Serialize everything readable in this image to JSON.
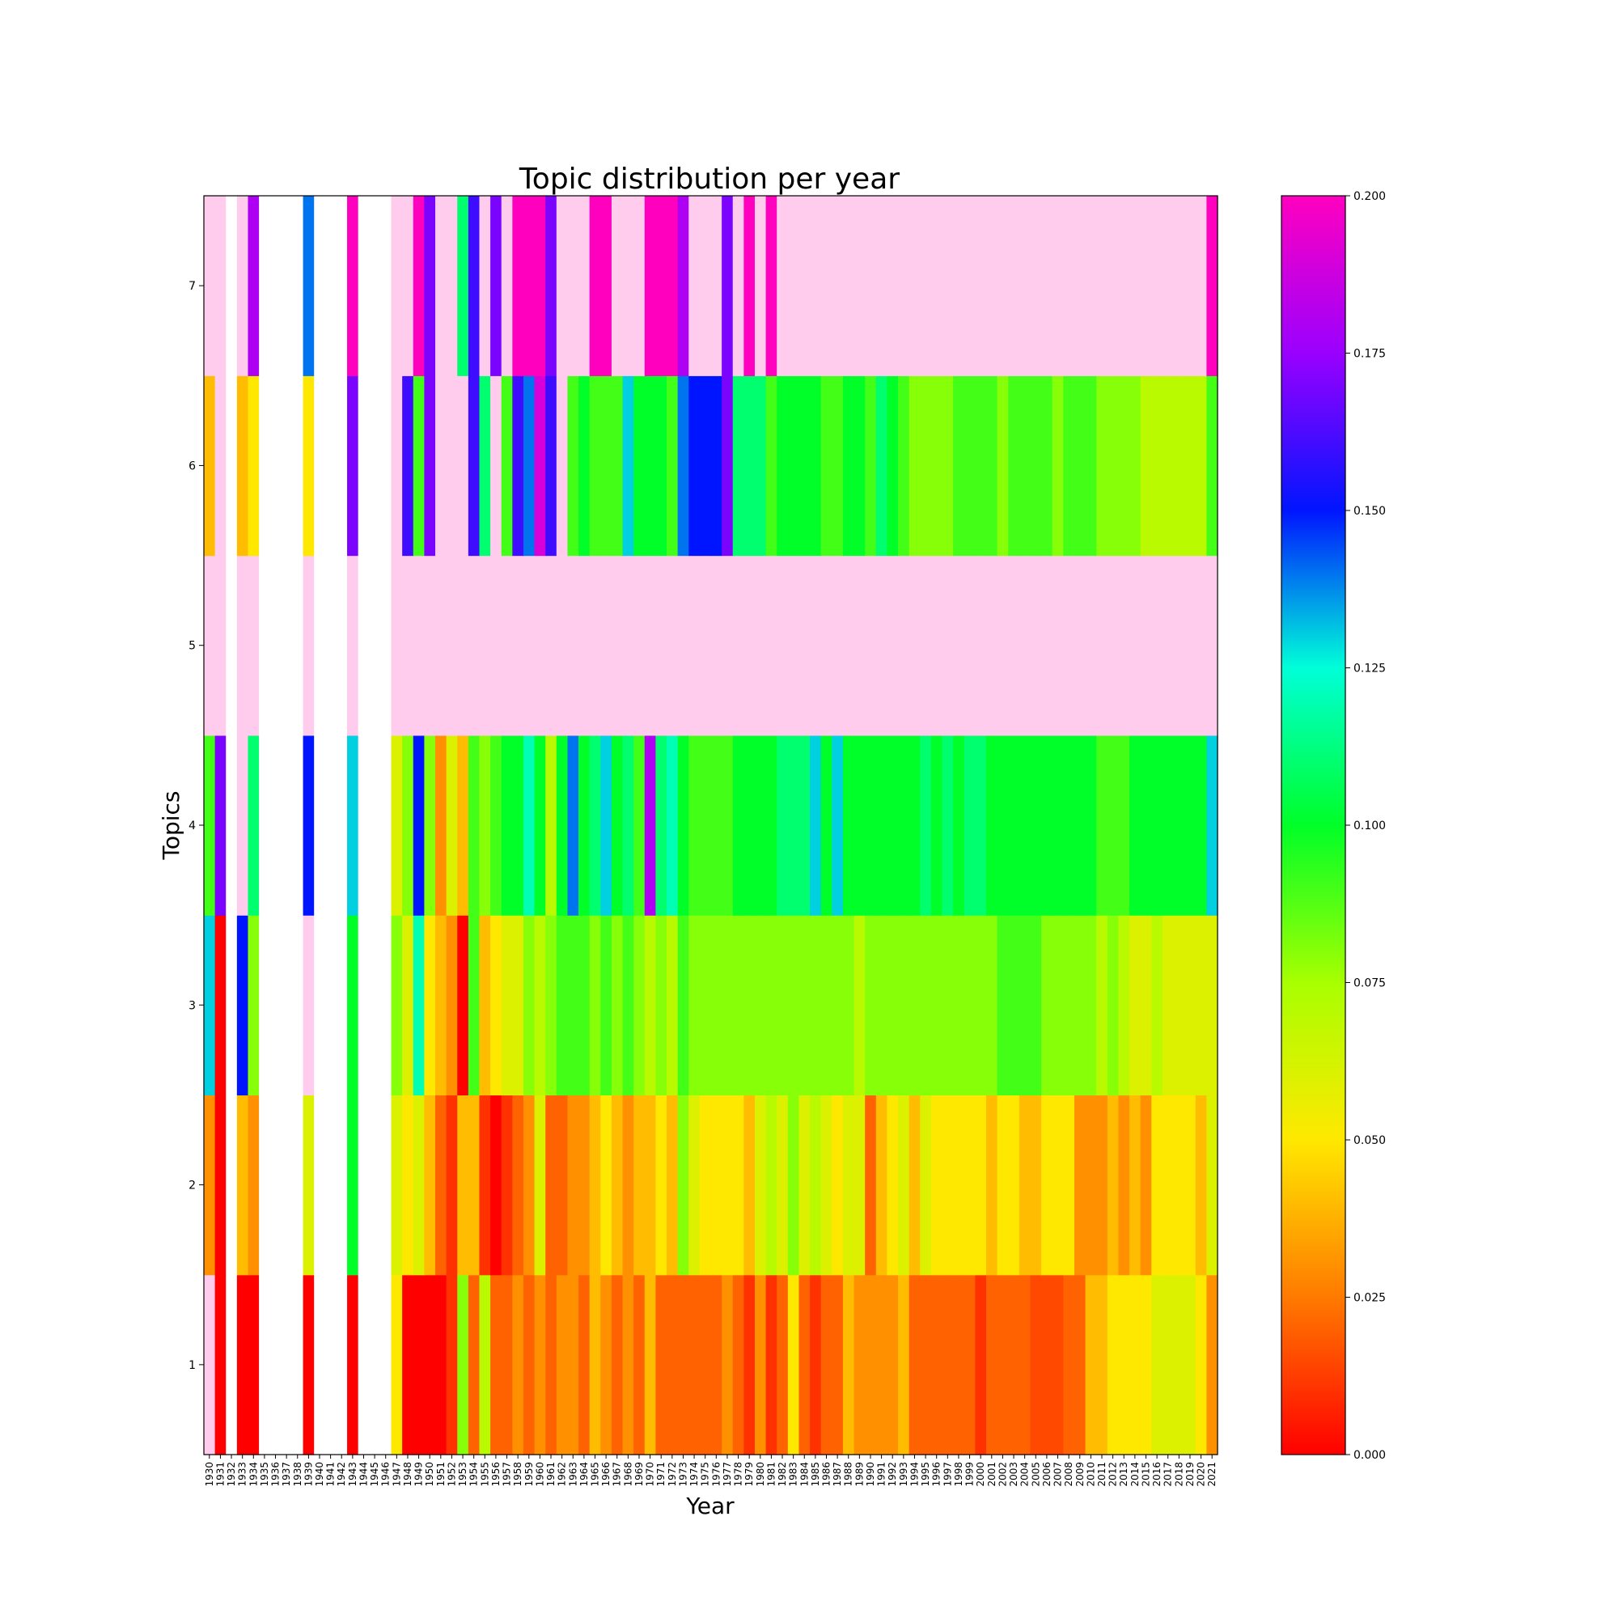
{
  "chart_data": {
    "type": "heatmap",
    "title": "Topic distribution per year",
    "xlabel": "Year",
    "ylabel": "Topics",
    "x": [
      "1930",
      "1931",
      "1932",
      "1933",
      "1934",
      "1935",
      "1936",
      "1937",
      "1938",
      "1939",
      "1940",
      "1941",
      "1942",
      "1943",
      "1944",
      "1945",
      "1946",
      "1947",
      "1948",
      "1949",
      "1950",
      "1951",
      "1952",
      "1953",
      "1954",
      "1955",
      "1956",
      "1957",
      "1958",
      "1959",
      "1960",
      "1961",
      "1962",
      "1963",
      "1964",
      "1965",
      "1966",
      "1967",
      "1968",
      "1969",
      "1970",
      "1971",
      "1972",
      "1973",
      "1974",
      "1975",
      "1976",
      "1977",
      "1978",
      "1979",
      "1980",
      "1981",
      "1982",
      "1983",
      "1984",
      "1985",
      "1986",
      "1987",
      "1988",
      "1989",
      "1990",
      "1991",
      "1992",
      "1993",
      "1994",
      "1995",
      "1996",
      "1997",
      "1998",
      "1999",
      "2000",
      "2001",
      "2002",
      "2003",
      "2004",
      "2005",
      "2006",
      "2007",
      "2008",
      "2009",
      "2010",
      "2011",
      "2012",
      "2013",
      "2014",
      "2015",
      "2016",
      "2017",
      "2018",
      "2019",
      "2020",
      "2021"
    ],
    "y": [
      "1",
      "2",
      "3",
      "4",
      "5",
      "6",
      "7"
    ],
    "colorbar": {
      "min": 0.0,
      "max": 0.2,
      "ticks": [
        "0.000",
        "0.025",
        "0.050",
        "0.075",
        "0.100",
        "0.125",
        "0.150",
        "0.175",
        "0.200"
      ],
      "colormap": "gist_rainbow",
      "over_color": "#ffccee",
      "missing_color": "#ffffff"
    },
    "values": [
      [
        0.21,
        0.0,
        null,
        0.0,
        0.0,
        null,
        null,
        null,
        null,
        0.0,
        null,
        null,
        null,
        0.0,
        null,
        null,
        null,
        0.05,
        0.0,
        0.0,
        0.0,
        0.0,
        0.01,
        0.08,
        0.02,
        0.07,
        0.02,
        0.02,
        0.03,
        0.02,
        0.03,
        0.02,
        0.03,
        0.03,
        0.02,
        0.04,
        0.03,
        0.02,
        0.03,
        0.02,
        0.04,
        0.02,
        0.02,
        0.02,
        0.02,
        0.02,
        0.02,
        0.03,
        0.02,
        0.01,
        0.03,
        0.01,
        0.02,
        0.05,
        0.02,
        0.01,
        0.02,
        0.02,
        0.04,
        0.03,
        0.03,
        0.03,
        0.03,
        0.04,
        0.02,
        0.02,
        0.02,
        0.02,
        0.02,
        0.02,
        0.01,
        0.02,
        0.02,
        0.02,
        0.02,
        0.015,
        0.015,
        0.015,
        0.02,
        0.02,
        0.04,
        0.04,
        0.05,
        0.05,
        0.05,
        0.05,
        0.06,
        0.06,
        0.06,
        0.06,
        0.05,
        0.03
      ],
      [
        0.03,
        0.0,
        null,
        0.04,
        0.03,
        null,
        null,
        null,
        null,
        0.06,
        null,
        null,
        null,
        0.1,
        null,
        null,
        null,
        0.06,
        0.05,
        0.06,
        0.04,
        0.02,
        0.01,
        0.04,
        0.04,
        0.01,
        0.0,
        0.01,
        0.02,
        0.03,
        0.06,
        0.02,
        0.02,
        0.03,
        0.03,
        0.04,
        0.05,
        0.04,
        0.03,
        0.04,
        0.04,
        0.05,
        0.04,
        0.08,
        0.06,
        0.05,
        0.05,
        0.05,
        0.05,
        0.04,
        0.06,
        0.07,
        0.06,
        0.08,
        0.06,
        0.07,
        0.06,
        0.05,
        0.06,
        0.06,
        0.02,
        0.04,
        0.05,
        0.06,
        0.04,
        0.06,
        0.05,
        0.05,
        0.05,
        0.05,
        0.05,
        0.04,
        0.05,
        0.05,
        0.04,
        0.04,
        0.05,
        0.05,
        0.05,
        0.03,
        0.03,
        0.03,
        0.04,
        0.03,
        0.04,
        0.03,
        0.05,
        0.05,
        0.05,
        0.05,
        0.04,
        0.06
      ],
      [
        0.13,
        0.0,
        null,
        0.15,
        0.08,
        null,
        null,
        null,
        null,
        0.21,
        null,
        null,
        null,
        0.1,
        null,
        null,
        null,
        0.08,
        0.06,
        0.12,
        0.05,
        0.04,
        0.03,
        0.0,
        0.09,
        0.04,
        0.05,
        0.06,
        0.06,
        0.08,
        0.07,
        0.08,
        0.09,
        0.09,
        0.09,
        0.08,
        0.09,
        0.08,
        0.09,
        0.08,
        0.07,
        0.08,
        0.07,
        0.09,
        0.08,
        0.08,
        0.08,
        0.08,
        0.08,
        0.08,
        0.08,
        0.08,
        0.08,
        0.08,
        0.08,
        0.08,
        0.08,
        0.08,
        0.08,
        0.07,
        0.08,
        0.08,
        0.08,
        0.08,
        0.08,
        0.08,
        0.08,
        0.08,
        0.08,
        0.08,
        0.08,
        0.08,
        0.09,
        0.09,
        0.09,
        0.09,
        0.08,
        0.08,
        0.08,
        0.08,
        0.08,
        0.07,
        0.08,
        0.07,
        0.06,
        0.06,
        0.07,
        0.06,
        0.06,
        0.06,
        0.06,
        0.06
      ],
      [
        0.09,
        0.17,
        null,
        0.21,
        0.11,
        null,
        null,
        null,
        null,
        0.15,
        null,
        null,
        null,
        0.13,
        null,
        null,
        null,
        0.06,
        0.08,
        0.15,
        0.08,
        0.03,
        0.06,
        0.04,
        0.09,
        0.08,
        0.09,
        0.1,
        0.1,
        0.12,
        0.1,
        0.07,
        0.1,
        0.14,
        0.1,
        0.11,
        0.13,
        0.1,
        0.11,
        0.09,
        0.18,
        0.11,
        0.12,
        0.1,
        0.09,
        0.09,
        0.09,
        0.09,
        0.1,
        0.1,
        0.1,
        0.1,
        0.11,
        0.11,
        0.11,
        0.13,
        0.1,
        0.13,
        0.1,
        0.1,
        0.1,
        0.1,
        0.1,
        0.1,
        0.1,
        0.11,
        0.1,
        0.11,
        0.1,
        0.11,
        0.11,
        0.1,
        0.1,
        0.1,
        0.1,
        0.1,
        0.1,
        0.1,
        0.1,
        0.1,
        0.1,
        0.09,
        0.09,
        0.09,
        0.1,
        0.1,
        0.1,
        0.1,
        0.1,
        0.1,
        0.1,
        0.13
      ],
      [
        0.21,
        0.21,
        null,
        0.21,
        0.21,
        null,
        null,
        null,
        null,
        0.21,
        null,
        null,
        null,
        0.21,
        null,
        null,
        null,
        0.21,
        0.21,
        0.21,
        0.21,
        0.21,
        0.21,
        0.21,
        0.21,
        0.21,
        0.21,
        0.21,
        0.21,
        0.21,
        0.21,
        0.21,
        0.21,
        0.21,
        0.21,
        0.21,
        0.21,
        0.21,
        0.21,
        0.21,
        0.21,
        0.21,
        0.21,
        0.21,
        0.21,
        0.21,
        0.21,
        0.21,
        0.21,
        0.21,
        0.21,
        0.21,
        0.21,
        0.21,
        0.21,
        0.21,
        0.21,
        0.21,
        0.21,
        0.21,
        0.21,
        0.21,
        0.21,
        0.21,
        0.21,
        0.21,
        0.21,
        0.21,
        0.21,
        0.21,
        0.21,
        0.21,
        0.21,
        0.21,
        0.21,
        0.21,
        0.21,
        0.21,
        0.21,
        0.21,
        0.21,
        0.21,
        0.21,
        0.21,
        0.21,
        0.21,
        0.21,
        0.21,
        0.21,
        0.21,
        0.21,
        0.21
      ],
      [
        0.04,
        0.21,
        null,
        0.04,
        0.05,
        null,
        null,
        null,
        null,
        0.05,
        null,
        null,
        null,
        0.17,
        null,
        null,
        null,
        0.21,
        0.16,
        0.09,
        0.17,
        0.21,
        0.21,
        0.21,
        0.16,
        0.11,
        0.21,
        0.09,
        0.16,
        0.14,
        0.19,
        0.16,
        0.21,
        0.09,
        0.1,
        0.09,
        0.09,
        0.09,
        0.13,
        0.1,
        0.1,
        0.1,
        0.09,
        0.14,
        0.15,
        0.15,
        0.15,
        0.17,
        0.11,
        0.11,
        0.11,
        0.09,
        0.1,
        0.1,
        0.1,
        0.1,
        0.09,
        0.09,
        0.1,
        0.1,
        0.09,
        0.11,
        0.1,
        0.09,
        0.08,
        0.08,
        0.08,
        0.08,
        0.09,
        0.09,
        0.09,
        0.09,
        0.08,
        0.09,
        0.09,
        0.09,
        0.09,
        0.08,
        0.09,
        0.09,
        0.09,
        0.08,
        0.08,
        0.08,
        0.08,
        0.07,
        0.07,
        0.07,
        0.07,
        0.07,
        0.07,
        0.09
      ],
      [
        0.21,
        0.21,
        null,
        0.21,
        0.18,
        null,
        null,
        null,
        null,
        0.14,
        null,
        null,
        null,
        0.2,
        null,
        null,
        null,
        0.21,
        0.21,
        0.2,
        0.17,
        0.21,
        0.21,
        0.11,
        0.16,
        0.21,
        0.17,
        0.21,
        0.2,
        0.2,
        0.2,
        0.17,
        0.21,
        0.21,
        0.21,
        0.2,
        0.2,
        0.21,
        0.21,
        0.21,
        0.2,
        0.2,
        0.2,
        0.18,
        0.21,
        0.21,
        0.21,
        0.17,
        0.21,
        0.2,
        0.21,
        0.2,
        0.21,
        0.21,
        0.21,
        0.21,
        0.21,
        0.21,
        0.21,
        0.21,
        0.21,
        0.21,
        0.21,
        0.21,
        0.21,
        0.21,
        0.21,
        0.21,
        0.21,
        0.21,
        0.21,
        0.21,
        0.21,
        0.21,
        0.21,
        0.21,
        0.21,
        0.21,
        0.21,
        0.21,
        0.21,
        0.21,
        0.21,
        0.21,
        0.21,
        0.21,
        0.21,
        0.21,
        0.21,
        0.21,
        0.21,
        0.2
      ]
    ]
  }
}
